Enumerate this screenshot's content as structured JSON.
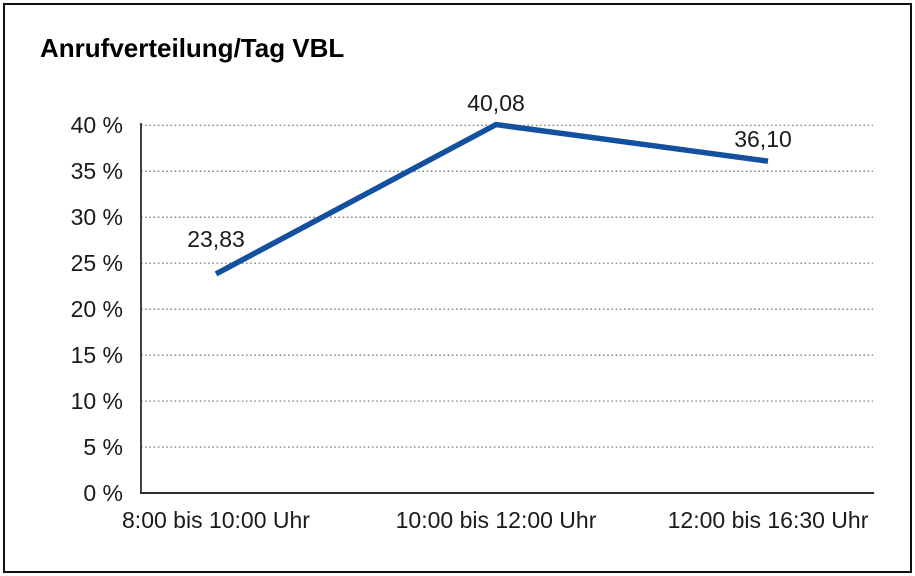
{
  "page": {
    "background": "#ffffff",
    "frame_border_color": "#111111"
  },
  "chart_data": {
    "type": "line",
    "title": "Anrufverteilung/Tag VBL",
    "categories": [
      "8:00 bis 10:00 Uhr",
      "10:00 bis 12:00 Uhr",
      "12:00 bis 16:30 Uhr"
    ],
    "values": [
      23.83,
      40.08,
      36.1
    ],
    "value_labels": [
      "23,83",
      "40,08",
      "36,10"
    ],
    "y_ticks": [
      "0 %",
      "5 %",
      "10 %",
      "15 %",
      "20 %",
      "25 %",
      "30 %",
      "35 %",
      "40 %"
    ],
    "ylim": [
      0,
      40
    ],
    "y_tick_step": 5,
    "xlabel": "",
    "ylabel": "",
    "grid": "horizontal-dotted",
    "gridline_color": "#707070",
    "axis_color": "#2e2e2e",
    "legend": "none",
    "series_name": "Anrufverteilung/Tag VBL",
    "line_color": "#1450a0"
  }
}
